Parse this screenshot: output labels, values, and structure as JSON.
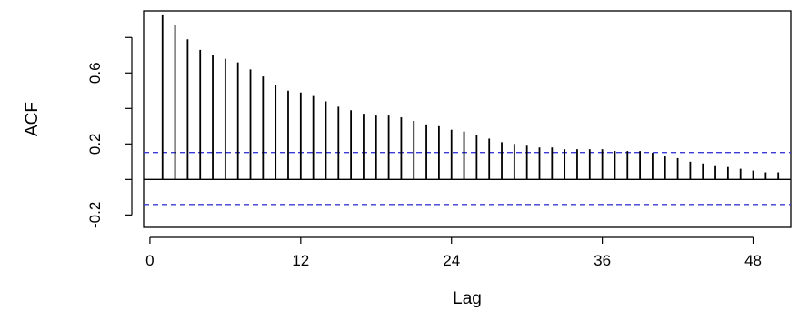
{
  "chart_data": {
    "type": "bar",
    "xlabel": "Lag",
    "ylabel": "ACF",
    "xlim": [
      -0.5,
      51
    ],
    "ylim": [
      -0.27,
      0.95
    ],
    "x_ticks": [
      0,
      12,
      24,
      36,
      48
    ],
    "x_tick_labels": [
      "0",
      "12",
      "24",
      "36",
      "48"
    ],
    "y_ticks": [
      -0.2,
      0,
      0.2,
      0.4,
      0.6,
      0.8
    ],
    "y_tick_labels": [
      "-0.2",
      "",
      "0.2",
      "",
      "0.6",
      ""
    ],
    "confidence_bounds": [
      0.152,
      -0.141
    ],
    "grid": false,
    "colors": {
      "bars": "#000000",
      "bounds": "#3b3bd6",
      "zero_line": "#000000"
    },
    "series": [
      {
        "x": [
          1,
          2,
          3,
          4,
          5,
          6,
          7,
          8,
          9,
          10,
          11,
          12,
          13,
          14,
          15,
          16,
          17,
          18,
          19,
          20,
          21,
          22,
          23,
          24,
          25,
          26,
          27,
          28,
          29,
          30,
          31,
          32,
          33,
          34,
          35,
          36,
          37,
          38,
          39,
          40,
          41,
          42,
          43,
          44,
          45,
          46,
          47,
          48,
          49,
          50
        ],
        "values": [
          0.93,
          0.87,
          0.79,
          0.73,
          0.7,
          0.68,
          0.66,
          0.62,
          0.58,
          0.53,
          0.5,
          0.49,
          0.47,
          0.44,
          0.41,
          0.39,
          0.37,
          0.36,
          0.36,
          0.35,
          0.33,
          0.31,
          0.3,
          0.28,
          0.27,
          0.25,
          0.23,
          0.21,
          0.2,
          0.19,
          0.18,
          0.18,
          0.17,
          0.17,
          0.17,
          0.17,
          0.16,
          0.16,
          0.16,
          0.15,
          0.13,
          0.12,
          0.1,
          0.09,
          0.08,
          0.07,
          0.06,
          0.05,
          0.04,
          0.04
        ]
      }
    ]
  }
}
